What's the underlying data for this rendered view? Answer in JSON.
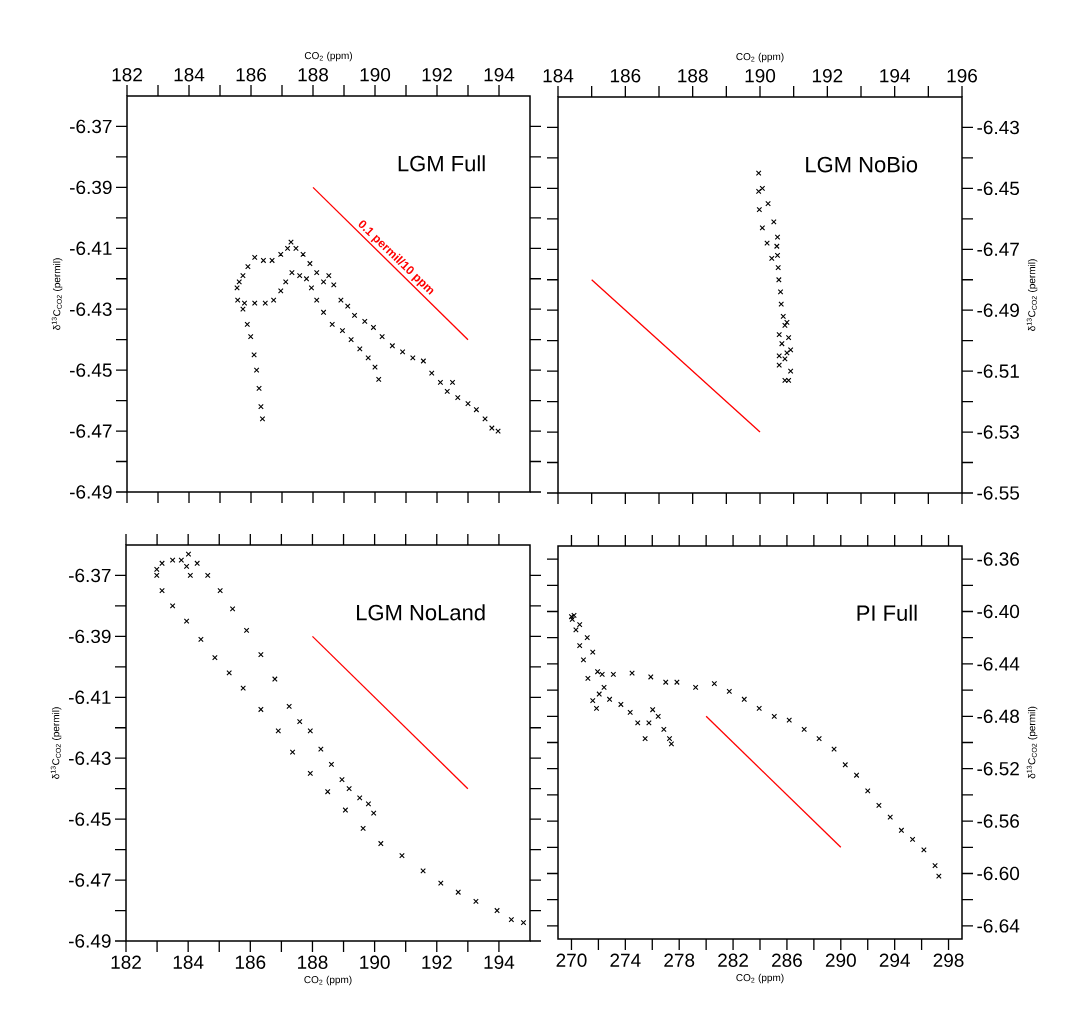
{
  "chart_data": [
    {
      "type": "scatter",
      "title": "LGM Full",
      "xlabel": "CO$_{2}$ (ppm)",
      "ylabel": "δ$^{13}$C$_{CO2}$ (permil)",
      "xlim": [
        182,
        195
      ],
      "xticks": [
        182,
        184,
        186,
        188,
        190,
        192,
        194
      ],
      "ylim": [
        -6.49,
        -6.36
      ],
      "yticks": [
        -6.49,
        -6.47,
        -6.45,
        -6.43,
        -6.41,
        -6.39,
        -6.37
      ],
      "annotations": [
        {
          "text": "0.1 permil/10 ppm",
          "x": 190.5,
          "y": -6.415
        }
      ],
      "series": [
        {
          "color": "#000000",
          "marker": "cross",
          "x": [
            186.37,
            186.32,
            186.26,
            186.18,
            186.1,
            185.99,
            185.88,
            185.74,
            185.57,
            185.55,
            185.62,
            185.74,
            185.9,
            186.12,
            186.4,
            186.68,
            186.96,
            187.18,
            187.29,
            187.45,
            187.68,
            187.9,
            188.12,
            188.34,
            188.51,
            188.67,
            188.9,
            189.12,
            189.34,
            189.67,
            189.95,
            190.23,
            190.56,
            190.89,
            191.22,
            191.56,
            191.83,
            192.11,
            192.33,
            192.5,
            192.67,
            193.0,
            193.27,
            193.55,
            193.77,
            193.97,
            185.79,
            186.12,
            186.46,
            186.73,
            186.96,
            187.12,
            187.32,
            187.57,
            187.79,
            187.95,
            188.12,
            188.34,
            188.62,
            188.95,
            189.23,
            189.51,
            189.78,
            190.0,
            190.12
          ],
          "values": [
            -6.466,
            -6.462,
            -6.456,
            -6.45,
            -6.445,
            -6.439,
            -6.435,
            -6.43,
            -6.427,
            -6.423,
            -6.421,
            -6.419,
            -6.416,
            -6.413,
            -6.414,
            -6.414,
            -6.412,
            -6.41,
            -6.408,
            -6.41,
            -6.412,
            -6.415,
            -6.418,
            -6.421,
            -6.419,
            -6.422,
            -6.427,
            -6.429,
            -6.432,
            -6.434,
            -6.436,
            -6.439,
            -6.442,
            -6.444,
            -6.446,
            -6.447,
            -6.451,
            -6.454,
            -6.457,
            -6.454,
            -6.459,
            -6.461,
            -6.463,
            -6.466,
            -6.469,
            -6.47,
            -6.428,
            -6.428,
            -6.428,
            -6.427,
            -6.424,
            -6.421,
            -6.418,
            -6.419,
            -6.42,
            -6.423,
            -6.427,
            -6.431,
            -6.435,
            -6.437,
            -6.44,
            -6.443,
            -6.446,
            -6.449,
            -6.453
          ]
        },
        {
          "type": "line",
          "color": "#ff0000",
          "x": [
            188,
            193
          ],
          "values": [
            -6.39,
            -6.44
          ]
        }
      ]
    },
    {
      "type": "scatter",
      "title": "LGM NoBio",
      "xlabel": "CO$_{2}$ (ppm)",
      "y2label": "δ$^{13}$C$_{CO2}$ (permil)",
      "xlim": [
        184,
        196
      ],
      "xticks": [
        184,
        186,
        188,
        190,
        192,
        194,
        196
      ],
      "y2lim": [
        -6.55,
        -6.42
      ],
      "y2ticks": [
        -6.55,
        -6.53,
        -6.51,
        -6.49,
        -6.47,
        -6.45,
        -6.43
      ],
      "series": [
        {
          "color": "#000000",
          "marker": "cross",
          "axis": "y2",
          "x": [
            189.96,
            190.07,
            190.24,
            190.41,
            190.52,
            190.5,
            190.35,
            190.21,
            190.07,
            189.98,
            189.96,
            190.52,
            190.54,
            190.56,
            190.61,
            190.63,
            190.69,
            190.74,
            190.57,
            190.85,
            190.91,
            190.57,
            190.74,
            190.91,
            190.57,
            190.74,
            190.85,
            190.8,
            190.8,
            190.65
          ],
          "values": [
            -6.445,
            -6.45,
            -6.455,
            -6.461,
            -6.466,
            -6.469,
            -6.473,
            -6.468,
            -6.463,
            -6.457,
            -6.451,
            -6.472,
            -6.476,
            -6.48,
            -6.484,
            -6.488,
            -6.492,
            -6.495,
            -6.498,
            -6.499,
            -6.503,
            -6.505,
            -6.506,
            -6.51,
            -6.508,
            -6.513,
            -6.513,
            -6.494,
            -6.504,
            -6.501
          ]
        },
        {
          "type": "line",
          "color": "#ff0000",
          "axis": "y2",
          "x": [
            185,
            190
          ],
          "values": [
            -6.48,
            -6.53
          ]
        }
      ]
    },
    {
      "type": "scatter",
      "title": "LGM NoLand",
      "xlabel": "CO$_{2}$ (ppm)",
      "ylabel": "δ$^{13}$C$_{CO2}$ (permil)",
      "xlim": [
        182,
        195
      ],
      "xticks": [
        182,
        184,
        186,
        188,
        190,
        192,
        194
      ],
      "ylim": [
        -6.49,
        -6.36
      ],
      "yticks": [
        -6.49,
        -6.47,
        -6.45,
        -6.43,
        -6.41,
        -6.39,
        -6.37
      ],
      "series": [
        {
          "color": "#000000",
          "marker": "cross",
          "x": [
            182.99,
            183.16,
            183.5,
            183.78,
            183.95,
            184.07,
            184.01,
            184.29,
            184.63,
            185.03,
            185.43,
            185.88,
            186.34,
            186.79,
            187.25,
            187.59,
            187.93,
            188.27,
            188.61,
            188.95,
            189.18,
            189.52,
            189.8,
            189.97,
            182.99,
            183.16,
            183.5,
            183.95,
            184.41,
            184.86,
            185.32,
            185.77,
            186.34,
            186.9,
            187.36,
            187.93,
            188.49,
            189.06,
            189.63,
            190.2,
            190.88,
            191.56,
            192.13,
            192.69,
            193.26,
            193.94,
            194.4,
            194.79
          ],
          "values": [
            -6.368,
            -6.366,
            -6.365,
            -6.365,
            -6.367,
            -6.37,
            -6.363,
            -6.366,
            -6.37,
            -6.375,
            -6.381,
            -6.388,
            -6.396,
            -6.404,
            -6.413,
            -6.418,
            -6.421,
            -6.427,
            -6.432,
            -6.437,
            -6.44,
            -6.443,
            -6.445,
            -6.448,
            -6.37,
            -6.375,
            -6.38,
            -6.385,
            -6.391,
            -6.397,
            -6.402,
            -6.407,
            -6.414,
            -6.421,
            -6.428,
            -6.435,
            -6.441,
            -6.447,
            -6.453,
            -6.458,
            -6.462,
            -6.467,
            -6.471,
            -6.474,
            -6.477,
            -6.48,
            -6.483,
            -6.484
          ]
        },
        {
          "type": "line",
          "color": "#ff0000",
          "x": [
            188,
            193
          ],
          "values": [
            -6.39,
            -6.44
          ]
        }
      ]
    },
    {
      "type": "scatter",
      "title": "PI Full",
      "xlabel": "CO$_{2}$ (ppm)",
      "y2label": "δ$^{13}$C$_{CO2}$ (permil)",
      "xlim": [
        269,
        299
      ],
      "xticks": [
        270,
        274,
        278,
        282,
        286,
        290,
        294,
        298
      ],
      "y2lim": [
        -6.65,
        -6.35
      ],
      "y2ticks": [
        -6.64,
        {
          "value": -6.6,
          "label": "-6.60"
        },
        -6.56,
        -6.52,
        -6.48,
        -6.44,
        {
          "value": -6.4,
          "label": "-6.40"
        },
        -6.36
      ],
      "series": [
        {
          "color": "#000000",
          "marker": "cross",
          "axis": "y2",
          "x": [
            270.0,
            270.06,
            270.33,
            270.61,
            270.89,
            271.22,
            271.58,
            271.86,
            272.06,
            271.94,
            271.58,
            271.17,
            270.61,
            270.19,
            272.42,
            272.83,
            273.67,
            274.36,
            274.92,
            275.47,
            275.75,
            276.03,
            276.44,
            276.86,
            277.28,
            277.42,
            272.28,
            273.11,
            274.5,
            275.89,
            277.0,
            277.83,
            279.22,
            280.61,
            281.72,
            282.83,
            283.94,
            285.06,
            286.17,
            287.28,
            288.39,
            289.5,
            290.33,
            291.17,
            292.0,
            292.83,
            293.67,
            294.5,
            295.33,
            296.17,
            297.0,
            297.28
          ],
          "values": [
            -6.404,
            -6.406,
            -6.414,
            -6.426,
            -6.437,
            -6.451,
            -6.468,
            -6.474,
            -6.463,
            -6.446,
            -6.431,
            -6.42,
            -6.41,
            -6.403,
            -6.458,
            -6.467,
            -6.471,
            -6.477,
            -6.485,
            -6.497,
            -6.485,
            -6.475,
            -6.48,
            -6.49,
            -6.497,
            -6.501,
            -6.448,
            -6.448,
            -6.447,
            -6.45,
            -6.454,
            -6.454,
            -6.458,
            -6.455,
            -6.461,
            -6.467,
            -6.474,
            -6.48,
            -6.483,
            -6.49,
            -6.497,
            -6.505,
            -6.517,
            -6.525,
            -6.537,
            -6.548,
            -6.557,
            -6.567,
            -6.574,
            -6.582,
            -6.594,
            -6.602
          ]
        },
        {
          "type": "line",
          "color": "#ff0000",
          "axis": "y2",
          "x": [
            280,
            290
          ],
          "values": [
            -6.48,
            -6.58
          ]
        }
      ]
    }
  ]
}
